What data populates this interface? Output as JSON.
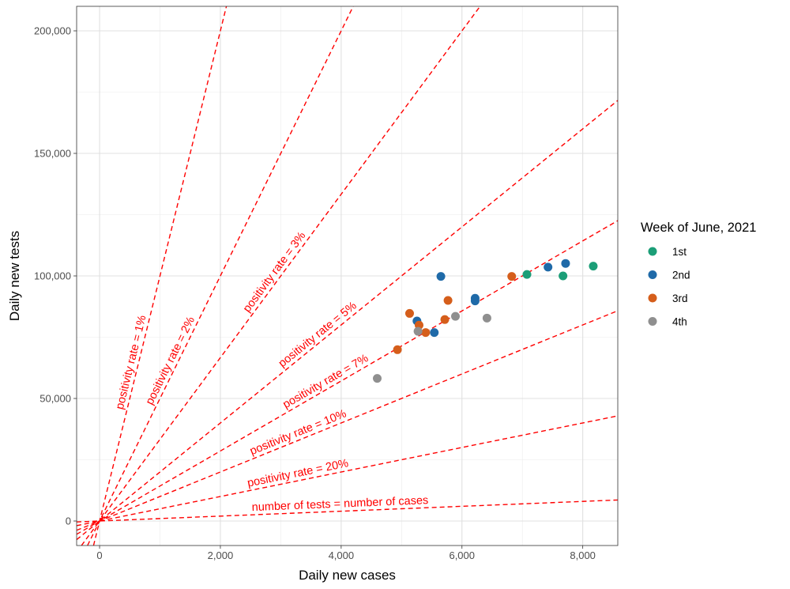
{
  "chart_data": {
    "type": "scatter",
    "title": "",
    "xlabel": "Daily new cases",
    "ylabel": "Daily new tests",
    "xlim": [
      -380,
      8580
    ],
    "ylim": [
      -10000,
      210000
    ],
    "x_ticks": [
      0,
      2000,
      4000,
      6000,
      8000
    ],
    "x_tick_labels": [
      "0",
      "2,000",
      "4,000",
      "6,000",
      "8,000"
    ],
    "y_ticks": [
      0,
      50000,
      100000,
      150000,
      200000
    ],
    "y_tick_labels": [
      "0",
      "50,000",
      "100,000",
      "150,000",
      "200,000"
    ],
    "grid": true,
    "legend": {
      "title": "Week of June, 2021",
      "placement": "right"
    },
    "series": [
      {
        "name": "1st",
        "color": "#1B9E77",
        "points": [
          [
            7076,
            100600
          ],
          [
            7673,
            100000
          ],
          [
            8174,
            104000
          ]
        ]
      },
      {
        "name": "2nd",
        "color": "#1F6AA8",
        "points": [
          [
            5651,
            99800
          ],
          [
            6218,
            90900
          ],
          [
            6218,
            89800
          ],
          [
            7425,
            103600
          ],
          [
            7716,
            105100
          ],
          [
            5255,
            81600
          ],
          [
            5542,
            76900
          ]
        ]
      },
      {
        "name": "3rd",
        "color": "#D55E1B",
        "points": [
          [
            6824,
            99800
          ],
          [
            5769,
            90000
          ],
          [
            5133,
            84700
          ],
          [
            5290,
            79900
          ],
          [
            5716,
            82200
          ],
          [
            5399,
            76900
          ],
          [
            4932,
            69900
          ]
        ]
      },
      {
        "name": "4th",
        "color": "#8F8F8F",
        "points": [
          [
            5892,
            83500
          ],
          [
            6414,
            82800
          ],
          [
            5272,
            77400
          ],
          [
            4597,
            58200
          ]
        ]
      }
    ],
    "reference_lines": [
      {
        "label": "positivity rate = 1%",
        "tests_per_case": 100
      },
      {
        "label": "positivity rate = 2%",
        "tests_per_case": 50
      },
      {
        "label": "positivity rate = 3%",
        "tests_per_case": 33.333
      },
      {
        "label": "positivity rate = 5%",
        "tests_per_case": 20
      },
      {
        "label": "positivity rate = 7%",
        "tests_per_case": 14.286
      },
      {
        "label": "positivity rate = 10%",
        "tests_per_case": 10
      },
      {
        "label": "positivity rate = 20%",
        "tests_per_case": 5
      },
      {
        "label": "number of tests = number of cases",
        "tests_per_case": 1
      }
    ],
    "reference_line_color": "#FF0000"
  }
}
